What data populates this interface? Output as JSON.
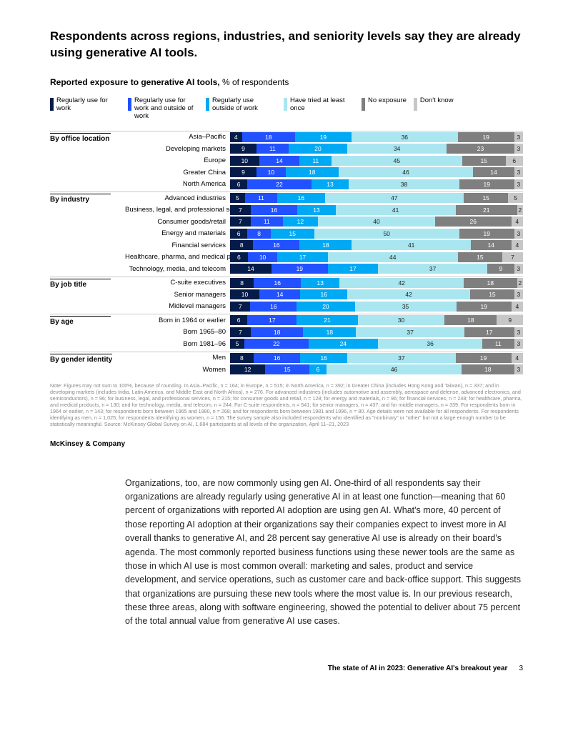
{
  "headline": "Respondents across regions, industries, and seniority levels say they are already using generative AI tools.",
  "subhead_bold": "Reported exposure to generative AI tools,",
  "subhead_rest": " % of respondents",
  "colors": {
    "c1": "#051c4a",
    "c2": "#2251ff",
    "c3": "#00a9f4",
    "c4": "#aae6f0",
    "c5": "#7f7f7f",
    "c6": "#c7c7c7"
  },
  "legend": [
    {
      "label": "Regularly use for work",
      "color": "c1"
    },
    {
      "label": "Regularly use for work and outside of work",
      "color": "c2"
    },
    {
      "label": "Regularly use outside of work",
      "color": "c3"
    },
    {
      "label": "Have tried at least once",
      "color": "c4"
    },
    {
      "label": "No exposure",
      "color": "c5"
    },
    {
      "label": "Don't know",
      "color": "c6"
    }
  ],
  "light_text_segments": [
    "c4",
    "c6"
  ],
  "groups": [
    {
      "title": "By office location",
      "rows": [
        {
          "label": "Asia–Pacific",
          "values": [
            4,
            18,
            19,
            36,
            19,
            3
          ]
        },
        {
          "label": "Developing markets",
          "values": [
            9,
            11,
            20,
            34,
            23,
            3
          ]
        },
        {
          "label": "Europe",
          "values": [
            10,
            14,
            11,
            45,
            15,
            6
          ]
        },
        {
          "label": "Greater China",
          "values": [
            9,
            10,
            18,
            46,
            14,
            3
          ]
        },
        {
          "label": "North America",
          "values": [
            6,
            22,
            13,
            38,
            19,
            3
          ]
        }
      ]
    },
    {
      "title": "By industry",
      "rows": [
        {
          "label": "Advanced industries",
          "values": [
            5,
            11,
            16,
            47,
            15,
            5
          ]
        },
        {
          "label": "Business, legal, and professional services",
          "values": [
            7,
            16,
            13,
            41,
            21,
            2
          ]
        },
        {
          "label": "Consumer goods/retail",
          "values": [
            7,
            11,
            12,
            40,
            26,
            4
          ]
        },
        {
          "label": "Energy and materials",
          "values": [
            6,
            8,
            15,
            50,
            19,
            3
          ]
        },
        {
          "label": "Financial services",
          "values": [
            8,
            16,
            18,
            41,
            14,
            4
          ]
        },
        {
          "label": "Healthcare, pharma, and medical products",
          "values": [
            6,
            10,
            17,
            44,
            15,
            7
          ]
        },
        {
          "label": "Technology, media, and telecom",
          "values": [
            14,
            19,
            17,
            37,
            9,
            3
          ]
        }
      ]
    },
    {
      "title": "By job title",
      "rows": [
        {
          "label": "C-suite executives",
          "values": [
            8,
            16,
            13,
            42,
            18,
            2
          ]
        },
        {
          "label": "Senior managers",
          "values": [
            10,
            14,
            16,
            42,
            15,
            3
          ]
        },
        {
          "label": "Midlevel managers",
          "values": [
            7,
            16,
            20,
            35,
            19,
            4
          ]
        }
      ]
    },
    {
      "title": "By age",
      "rows": [
        {
          "label": "Born in 1964 or earlier",
          "values": [
            6,
            17,
            21,
            30,
            18,
            9
          ]
        },
        {
          "label": "Born 1965–80",
          "values": [
            7,
            18,
            18,
            37,
            17,
            3
          ]
        },
        {
          "label": "Born 1981–96",
          "values": [
            5,
            22,
            24,
            36,
            11,
            3
          ]
        }
      ]
    },
    {
      "title": "By gender identity",
      "rows": [
        {
          "label": "Men",
          "values": [
            8,
            16,
            16,
            37,
            19,
            4
          ]
        },
        {
          "label": "Women",
          "values": [
            12,
            15,
            6,
            46,
            18,
            3
          ]
        }
      ]
    }
  ],
  "footnote": "Note: Figures may not sum to 100%, because of rounding. In Asia–Pacific, n = 164; in Europe, n = 515; in North America, n = 392; in Greater China (includes Hong Kong and Taiwan), n = 337; and in developing markets (includes India, Latin America, and Middle East and North Africa), n = 276. For advanced industries (includes automotive and assembly, aerospace and defense, advanced electronics, and semiconductors), n = 96; for business, legal, and professional services, n = 215; for consumer goods and retail, n = 128; for energy and materials, n = 96; for financial services, n = 248; for healthcare, pharma, and medical products, n = 130; and for technology, media, and telecom, n = 244. For C-suite respondents, n = 541; for senior managers, n = 437; and for middle managers, n = 339. For respondents born in 1964 or earlier, n = 143; for respondents born between 1965 and 1980, n = 268; and for respondents born between 1981 and 1996, n = 80. Age details were not available for all respondents. For respondents identifying as men, n = 1,025; for respondents identifying as women, n = 156. The survey sample also included respondents who identified as \"nonbinary\" or \"other\" but not a large enough number to be statistically meaningful. Source: McKinsey Global Survey on AI, 1,684 participants at all levels of the organization, April 11–21, 2023",
  "brand": "McKinsey & Company",
  "bodycopy": "Organizations, too, are now commonly using gen AI. One-third of all respondents say their organizations are already regularly using generative AI in at least one function—meaning that 60 percent of organizations with reported AI adoption are using gen AI. What's more, 40 percent of those reporting AI adoption at their organizations say their companies expect to invest more in AI overall thanks to generative AI, and 28 percent say generative AI use is already on their board's agenda. The most commonly reported business functions using these newer tools are the same as those in which AI use is most common overall: marketing and sales, product and service development, and service operations, such as customer care and back-office support. This suggests that organizations are pursuing these new tools where the most value is. In our previous research, these three areas, along with software engineering, showed the potential to deliver about 75 percent of the total annual value from generative AI use cases.",
  "footer_title": "The state of AI in 2023: Generative AI's breakout year",
  "footer_page": "3"
}
